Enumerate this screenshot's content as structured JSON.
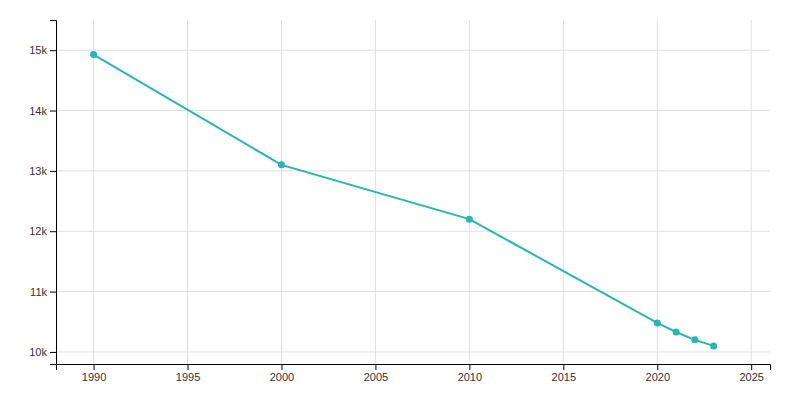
{
  "chart_data": {
    "type": "line",
    "x": [
      1990,
      2000,
      2010,
      2020,
      2021,
      2022,
      2023
    ],
    "values": [
      14927,
      13100,
      12200,
      10480,
      10330,
      10200,
      10100
    ],
    "color": "#28b5b5",
    "marker": "circle",
    "xlim": [
      1988,
      2026
    ],
    "ylim": [
      9800,
      15500
    ],
    "xticks": [
      1990,
      1995,
      2000,
      2005,
      2010,
      2015,
      2020,
      2025
    ],
    "yticks": [
      {
        "value": 10000,
        "label": "10k"
      },
      {
        "value": 11000,
        "label": "11k"
      },
      {
        "value": 12000,
        "label": "12k"
      },
      {
        "value": 13000,
        "label": "13k"
      },
      {
        "value": 14000,
        "label": "14k"
      },
      {
        "value": 15000,
        "label": "15k"
      }
    ],
    "grid": true
  }
}
